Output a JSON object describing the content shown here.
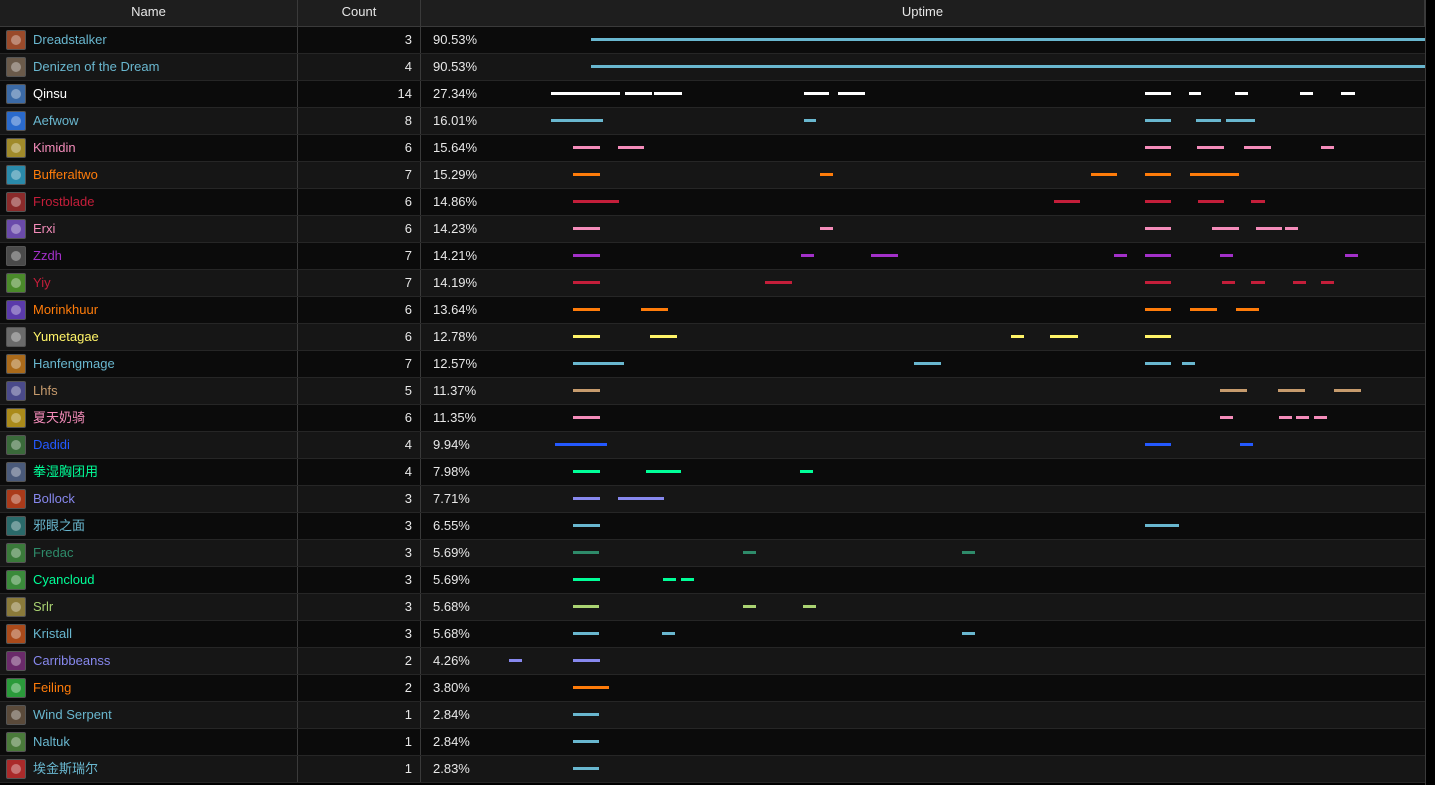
{
  "table": {
    "headers": {
      "name": "Name",
      "count": "Count",
      "uptime": "Uptime"
    },
    "timeline_range": [
      0,
      1000
    ],
    "rows": [
      {
        "name": "Dreadstalker",
        "count": "3",
        "uptime": "90.53%",
        "color": "#69b7cf",
        "icon": "pet-beast-icon",
        "icon_color": "#9a4a2a",
        "segments": [
          [
            107,
            1000
          ]
        ]
      },
      {
        "name": "Denizen of the Dream",
        "count": "4",
        "uptime": "90.53%",
        "color": "#69b7cf",
        "icon": "pet-beast-icon",
        "icon_color": "#6a5a4a",
        "segments": [
          [
            107,
            1000
          ]
        ]
      },
      {
        "name": "Qinsu",
        "count": "14",
        "uptime": "27.34%",
        "color": "#ffffff",
        "icon": "priest-icon",
        "icon_color": "#3b6aa6",
        "segments": [
          [
            64,
            138
          ],
          [
            144,
            172
          ],
          [
            175,
            204
          ],
          [
            335,
            362
          ],
          [
            372,
            400
          ],
          [
            700,
            728
          ],
          [
            747,
            760
          ],
          [
            797,
            810
          ],
          [
            866,
            880
          ],
          [
            910,
            925
          ]
        ]
      },
      {
        "name": "Aefwow",
        "count": "8",
        "uptime": "16.01%",
        "color": "#69b7cf",
        "icon": "mage-icon",
        "icon_color": "#2a6acc",
        "segments": [
          [
            64,
            120
          ],
          [
            335,
            348
          ],
          [
            700,
            728
          ],
          [
            755,
            782
          ],
          [
            787,
            818
          ]
        ]
      },
      {
        "name": "Kimidin",
        "count": "6",
        "uptime": "15.64%",
        "color": "#f48cba",
        "icon": "paladin-icon",
        "icon_color": "#a08a2a",
        "segments": [
          [
            88,
            117
          ],
          [
            136,
            164
          ],
          [
            700,
            728
          ],
          [
            756,
            785
          ],
          [
            806,
            835
          ],
          [
            889,
            903
          ]
        ]
      },
      {
        "name": "Bufferaltwo",
        "count": "7",
        "uptime": "15.29%",
        "color": "#ff7c0a",
        "icon": "shaman-icon",
        "icon_color": "#2a8aaa",
        "segments": [
          [
            88,
            117
          ],
          [
            352,
            366
          ],
          [
            642,
            670
          ],
          [
            700,
            728
          ],
          [
            748,
            801
          ]
        ]
      },
      {
        "name": "Frostblade",
        "count": "6",
        "uptime": "14.86%",
        "color": "#c41e3a",
        "icon": "deathknight-icon",
        "icon_color": "#8a2a2a",
        "segments": [
          [
            88,
            137
          ],
          [
            603,
            631
          ],
          [
            700,
            728
          ],
          [
            757,
            785
          ],
          [
            814,
            829
          ]
        ]
      },
      {
        "name": "Erxi",
        "count": "6",
        "uptime": "14.23%",
        "color": "#f48cba",
        "icon": "paladin-icon",
        "icon_color": "#6a4aaa",
        "segments": [
          [
            88,
            117
          ],
          [
            352,
            366
          ],
          [
            700,
            728
          ],
          [
            772,
            801
          ],
          [
            819,
            847
          ],
          [
            850,
            864
          ]
        ]
      },
      {
        "name": "Zzdh",
        "count": "7",
        "uptime": "14.21%",
        "color": "#a330c9",
        "icon": "demonhunter-icon",
        "icon_color": "#4a4a4a",
        "segments": [
          [
            88,
            117
          ],
          [
            332,
            346
          ],
          [
            407,
            436
          ],
          [
            667,
            681
          ],
          [
            700,
            728
          ],
          [
            780,
            794
          ],
          [
            914,
            928
          ]
        ]
      },
      {
        "name": "Yiy",
        "count": "7",
        "uptime": "14.19%",
        "color": "#c41e3a",
        "icon": "deathknight-icon",
        "icon_color": "#4a8a2a",
        "segments": [
          [
            88,
            117
          ],
          [
            293,
            322
          ],
          [
            700,
            728
          ],
          [
            783,
            797
          ],
          [
            814,
            829
          ],
          [
            859,
            873
          ],
          [
            889,
            903
          ]
        ]
      },
      {
        "name": "Morinkhuur",
        "count": "6",
        "uptime": "13.64%",
        "color": "#ff7c0a",
        "icon": "druid-icon",
        "icon_color": "#5a3aaa",
        "segments": [
          [
            88,
            117
          ],
          [
            161,
            190
          ],
          [
            700,
            728
          ],
          [
            748,
            777
          ],
          [
            798,
            822
          ]
        ]
      },
      {
        "name": "Yumetagae",
        "count": "6",
        "uptime": "12.78%",
        "color": "#fff468",
        "icon": "rogue-icon",
        "icon_color": "#6a6a6a",
        "segments": [
          [
            88,
            117
          ],
          [
            170,
            199
          ],
          [
            557,
            571
          ],
          [
            599,
            628
          ],
          [
            700,
            728
          ]
        ]
      },
      {
        "name": "Hanfengmage",
        "count": "7",
        "uptime": "12.57%",
        "color": "#69b7cf",
        "icon": "mage-icon",
        "icon_color": "#aa6a1a",
        "segments": [
          [
            88,
            142
          ],
          [
            453,
            482
          ],
          [
            700,
            728
          ],
          [
            740,
            754
          ]
        ]
      },
      {
        "name": "Lhfs",
        "count": "5",
        "uptime": "11.37%",
        "color": "#c69b6d",
        "icon": "warrior-icon",
        "icon_color": "#4a4a8a",
        "segments": [
          [
            88,
            117
          ],
          [
            780,
            809
          ],
          [
            843,
            871
          ],
          [
            903,
            932
          ]
        ]
      },
      {
        "name": "夏天奶骑",
        "count": "6",
        "uptime": "11.35%",
        "color": "#f48cba",
        "icon": "paladin-icon",
        "icon_color": "#aa8a1a",
        "segments": [
          [
            88,
            117
          ],
          [
            780,
            794
          ],
          [
            844,
            858
          ],
          [
            862,
            876
          ],
          [
            881,
            895
          ]
        ]
      },
      {
        "name": "Dadidi",
        "count": "4",
        "uptime": "9.94%",
        "color": "#2459ff",
        "icon": "evoker-icon",
        "icon_color": "#3a6a3a",
        "segments": [
          [
            68,
            124
          ],
          [
            700,
            728
          ],
          [
            802,
            816
          ]
        ]
      },
      {
        "name": "拳湿胸团用",
        "count": "4",
        "uptime": "7.98%",
        "color": "#00ff98",
        "icon": "monk-icon",
        "icon_color": "#4a5a7a",
        "segments": [
          [
            88,
            117
          ],
          [
            166,
            203
          ],
          [
            331,
            345
          ]
        ]
      },
      {
        "name": "Bollock",
        "count": "3",
        "uptime": "7.71%",
        "color": "#8788ee",
        "icon": "warlock-icon",
        "icon_color": "#aa3a1a",
        "segments": [
          [
            88,
            117
          ],
          [
            136,
            185
          ]
        ]
      },
      {
        "name": "邪眼之面",
        "count": "3",
        "uptime": "6.55%",
        "color": "#69b7cf",
        "icon": "pet-icon",
        "icon_color": "#2a6a6a",
        "segments": [
          [
            88,
            117
          ],
          [
            700,
            737
          ]
        ]
      },
      {
        "name": "Fredac",
        "count": "3",
        "uptime": "5.69%",
        "color": "#2e8b6a",
        "icon": "druid-icon",
        "icon_color": "#3a7a3a",
        "segments": [
          [
            88,
            116
          ],
          [
            270,
            284
          ],
          [
            504,
            518
          ]
        ]
      },
      {
        "name": "Cyancloud",
        "count": "3",
        "uptime": "5.69%",
        "color": "#00ff98",
        "icon": "monk-icon",
        "icon_color": "#3a8a3a",
        "segments": [
          [
            88,
            117
          ],
          [
            184,
            198
          ],
          [
            203,
            217
          ]
        ]
      },
      {
        "name": "Srlr",
        "count": "3",
        "uptime": "5.68%",
        "color": "#aad372",
        "icon": "hunter-icon",
        "icon_color": "#8a7a3a",
        "segments": [
          [
            88,
            116
          ],
          [
            270,
            284
          ],
          [
            334,
            348
          ]
        ]
      },
      {
        "name": "Kristall",
        "count": "3",
        "uptime": "5.68%",
        "color": "#69b7cf",
        "icon": "mage-icon",
        "icon_color": "#aa4a1a",
        "segments": [
          [
            88,
            116
          ],
          [
            183,
            197
          ],
          [
            504,
            518
          ]
        ]
      },
      {
        "name": "Carribbeanss",
        "count": "2",
        "uptime": "4.26%",
        "color": "#8788ee",
        "icon": "warlock-icon",
        "icon_color": "#6a2a6a",
        "segments": [
          [
            19,
            33
          ],
          [
            88,
            117
          ]
        ]
      },
      {
        "name": "Feiling",
        "count": "2",
        "uptime": "3.80%",
        "color": "#ff7c0a",
        "icon": "druid-icon",
        "icon_color": "#2a9a3a",
        "segments": [
          [
            88,
            126
          ]
        ]
      },
      {
        "name": "Wind Serpent",
        "count": "1",
        "uptime": "2.84%",
        "color": "#69b7cf",
        "icon": "pet-icon",
        "icon_color": "#5a4a3a",
        "segments": [
          [
            88,
            116
          ]
        ]
      },
      {
        "name": "Naltuk",
        "count": "1",
        "uptime": "2.84%",
        "color": "#69b7cf",
        "icon": "pet-icon",
        "icon_color": "#4a7a3a",
        "segments": [
          [
            88,
            116
          ]
        ]
      },
      {
        "name": "埃金斯瑞尔",
        "count": "1",
        "uptime": "2.83%",
        "color": "#69b7cf",
        "icon": "pet-icon",
        "icon_color": "#aa2a2a",
        "segments": [
          [
            88,
            116
          ]
        ]
      }
    ]
  }
}
